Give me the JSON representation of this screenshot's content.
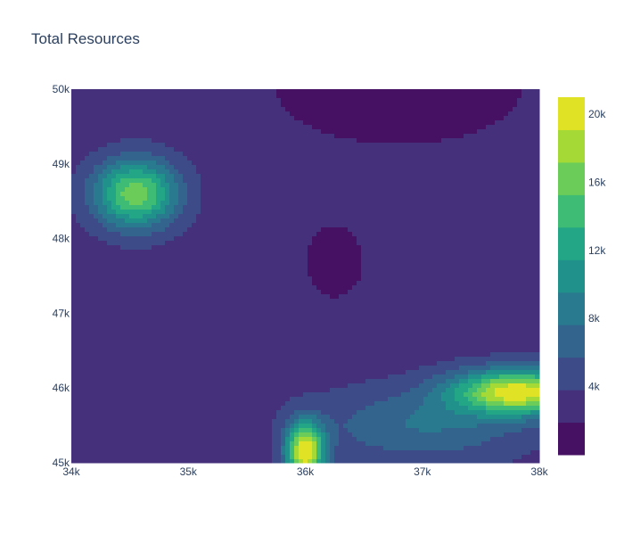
{
  "chart_data": {
    "type": "contour",
    "title": "Total Resources",
    "xlabel": "",
    "ylabel": "",
    "xlim": [
      34000,
      38000
    ],
    "ylim": [
      45000,
      50000
    ],
    "x_ticks": [
      {
        "value": 34000,
        "label": "34k"
      },
      {
        "value": 35000,
        "label": "35k"
      },
      {
        "value": 36000,
        "label": "36k"
      },
      {
        "value": 37000,
        "label": "37k"
      },
      {
        "value": 38000,
        "label": "38k"
      }
    ],
    "y_ticks": [
      {
        "value": 45000,
        "label": "45k"
      },
      {
        "value": 46000,
        "label": "46k"
      },
      {
        "value": 47000,
        "label": "47k"
      },
      {
        "value": 48000,
        "label": "48k"
      },
      {
        "value": 49000,
        "label": "49k"
      },
      {
        "value": 50000,
        "label": "50k"
      }
    ],
    "colorscale": "Viridis",
    "colorbar": {
      "range": [
        0,
        21000
      ],
      "level_step": 2000,
      "ticks": [
        {
          "value": 4000,
          "label": "4k"
        },
        {
          "value": 8000,
          "label": "8k"
        },
        {
          "value": 12000,
          "label": "12k"
        },
        {
          "value": 16000,
          "label": "16k"
        },
        {
          "value": 20000,
          "label": "20k"
        }
      ]
    },
    "approx_field": {
      "base": 3000,
      "features": [
        {
          "x": 34550,
          "y": 48600,
          "peak": 14500,
          "sx": 350,
          "sy": 450
        },
        {
          "x": 36000,
          "y": 45150,
          "peak": 19000,
          "sx": 160,
          "sy": 380
        },
        {
          "x": 37820,
          "y": 45950,
          "peak": 18000,
          "sx": 550,
          "sy": 300
        },
        {
          "x": 37000,
          "y": 45500,
          "peak": 5000,
          "sx": 900,
          "sy": 500
        },
        {
          "x": 36800,
          "y": 50000,
          "peak": -3000,
          "sx": 1000,
          "sy": 700
        },
        {
          "x": 36250,
          "y": 47700,
          "peak": -2500,
          "sx": 250,
          "sy": 500
        }
      ]
    }
  }
}
